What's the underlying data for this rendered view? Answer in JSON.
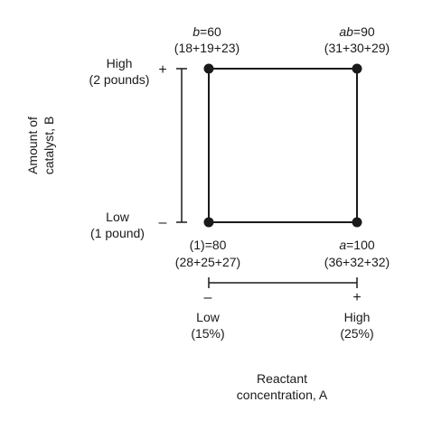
{
  "diagram": {
    "type": "2x2 factorial design square",
    "factor_a": {
      "axis_title": [
        "Reactant",
        "concentration, A"
      ],
      "low": {
        "sign": "–",
        "label": "Low",
        "value": "(15%)"
      },
      "high": {
        "sign": "+",
        "label": "High",
        "value": "(25%)"
      }
    },
    "factor_b": {
      "axis_title": [
        "Amount of",
        "catalyst, B"
      ],
      "low": {
        "sign": "–",
        "label": "Low",
        "value": "(1 pound)"
      },
      "high": {
        "sign": "+",
        "label": "High",
        "value": "(2 pounds)"
      }
    },
    "corners": {
      "one": {
        "name": "(1)",
        "total": "=80",
        "replicates": "(28+25+27)"
      },
      "a": {
        "name": "a",
        "total": "=100",
        "replicates": "(36+32+32)"
      },
      "b": {
        "name": "b",
        "total": "=60",
        "replicates": "(18+19+23)"
      },
      "ab": {
        "name": "ab",
        "total": "=90",
        "replicates": "(31+30+29)"
      }
    }
  }
}
